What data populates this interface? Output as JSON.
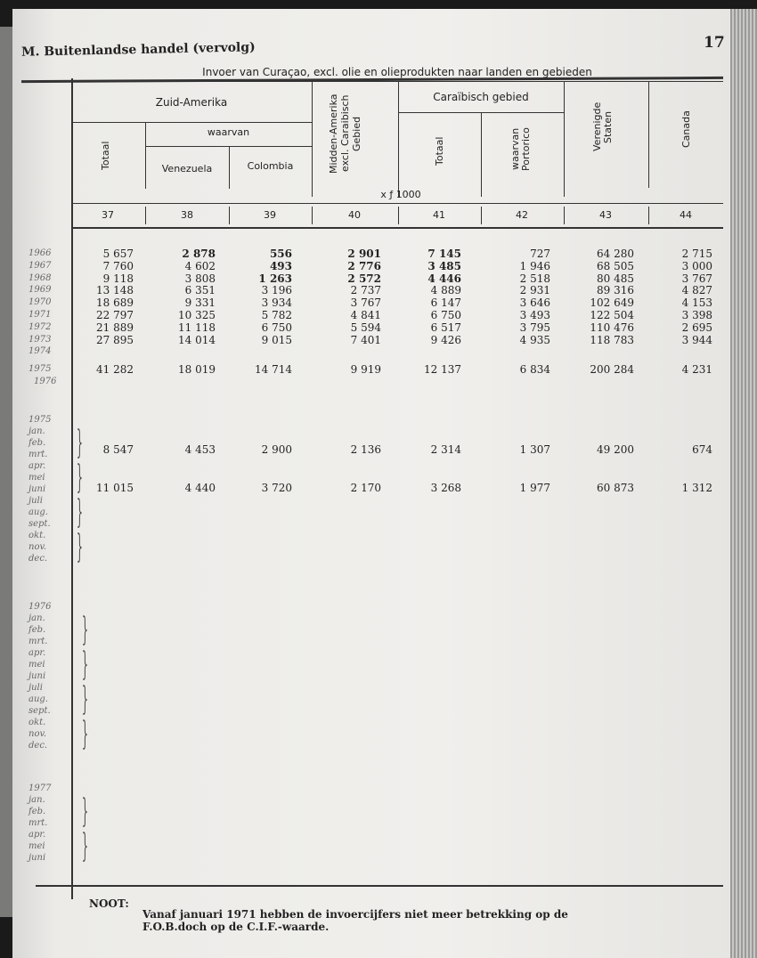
{
  "header": {
    "section_title": "M. Buitenlandse handel (vervolg)",
    "page_number": "17"
  },
  "table": {
    "title": "Invoer van Curaçao, excl. olie en olieprodukten naar landen en gebieden",
    "group_zuid": "Zuid-Amerika",
    "waarvan": "waarvan",
    "col_totaal": "Totaal",
    "col_venezuela": "Venezuela",
    "col_colombia": "Colombia",
    "col_midden": "Midden-Amerika excl. Caraibisch Gebied",
    "group_carib": "Caraïbisch gebied",
    "col_carib_totaal": "Totaal",
    "col_portorico": "waarvan Portorico",
    "col_vs": "Verenigde Staten",
    "col_canada": "Canada",
    "unit": "x ƒ 1000",
    "col_numbers": [
      "37",
      "38",
      "39",
      "40",
      "41",
      "42",
      "43",
      "44"
    ],
    "bold_cols": [
      1,
      2,
      3,
      4
    ],
    "years": [
      {
        "label": "1966",
        "values": [
          "5 657",
          "2 878",
          "556",
          "2 901",
          "7 145",
          "727",
          "64 280",
          "2 715"
        ]
      },
      {
        "label": "1967",
        "values": [
          "7 760",
          "4 602",
          "493",
          "2 776",
          "3 485",
          "1 946",
          "68 505",
          "3 000"
        ]
      },
      {
        "label": "1968",
        "values": [
          "9 118",
          "3 808",
          "1 263",
          "2 572",
          "4 446",
          "2 518",
          "80 485",
          "3 767"
        ]
      },
      {
        "label": "1969",
        "values": [
          "13 148",
          "6 351",
          "3 196",
          "2 737",
          "4 889",
          "2 931",
          "89 316",
          "4 827"
        ]
      },
      {
        "label": "1970",
        "values": [
          "18 689",
          "9 331",
          "3 934",
          "3 767",
          "6 147",
          "3 646",
          "102 649",
          "4 153"
        ]
      },
      {
        "label": "1971",
        "values": [
          "22 797",
          "10 325",
          "5 782",
          "4 841",
          "6 750",
          "3 493",
          "122 504",
          "3 398"
        ]
      },
      {
        "label": "1972",
        "values": [
          "21 889",
          "11 118",
          "6 750",
          "5 594",
          "6 517",
          "3 795",
          "110 476",
          "2 695"
        ]
      },
      {
        "label": "1973",
        "values": [
          "27 895",
          "14 014",
          "9 015",
          "7 401",
          "9 426",
          "4 935",
          "118 783",
          "3 944"
        ]
      },
      {
        "label": "1974",
        "values": [
          "",
          "",
          "",
          "",
          "",
          "",
          "",
          ""
        ]
      },
      {
        "label": "1975",
        "values": [
          "41 282",
          "18 019",
          "14 714",
          "9 919",
          "12 137",
          "6 834",
          "200 284",
          "4 231"
        ]
      },
      {
        "label": "1976",
        "values": [
          "",
          "",
          "",
          "",
          "",
          "",
          "",
          ""
        ]
      }
    ],
    "month_blocks": [
      {
        "year": "1975",
        "months": [
          "jan.",
          "feb.",
          "mrt.",
          "apr.",
          "mei",
          "juni",
          "juli",
          "aug.",
          "sept.",
          "okt.",
          "nov.",
          "dec."
        ]
      },
      {
        "year": "1976",
        "months": [
          "jan.",
          "feb.",
          "mrt.",
          "apr.",
          "mei",
          "juni",
          "juli",
          "aug.",
          "sept.",
          "okt.",
          "nov.",
          "dec."
        ]
      },
      {
        "year": "1977",
        "months": [
          "jan.",
          "feb.",
          "mrt.",
          "apr.",
          "mei",
          "juni"
        ]
      }
    ],
    "quarter_rows": [
      {
        "values": [
          "8 547",
          "4 453",
          "2 900",
          "2 136",
          "2 314",
          "1 307",
          "49 200",
          "674"
        ]
      },
      {
        "values": [
          "11 015",
          "4 440",
          "3 720",
          "2 170",
          "3 268",
          "1 977",
          "60 873",
          "1 312"
        ]
      }
    ]
  },
  "footnote": {
    "label": "NOOT:",
    "line1": "Vanaf januari 1971 hebben de invoercijfers niet meer betrekking op de",
    "line2": "F.O.B.doch op de C.I.F.-waarde."
  }
}
